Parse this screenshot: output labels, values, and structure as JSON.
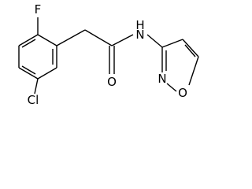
{
  "atoms": [
    "F",
    "O",
    "H",
    "N",
    "N",
    "O",
    "Cl"
  ]
}
